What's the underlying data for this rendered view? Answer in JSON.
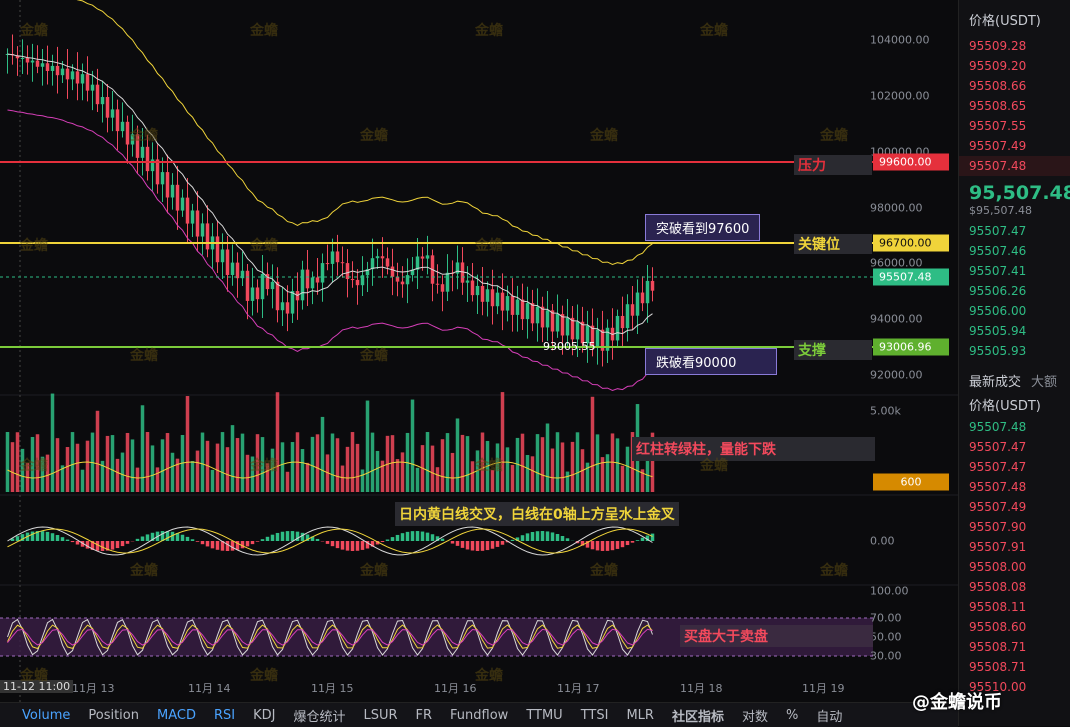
{
  "price_axis": {
    "labels": [
      "104000.00",
      "102000.00",
      "100000.00",
      "98000.00",
      "96000.00",
      "94000.00",
      "92000.00"
    ],
    "volume_labels": [
      "5.00k"
    ],
    "macd_labels": [
      "0.00"
    ],
    "rsi_labels": [
      "100.00",
      "70.00",
      "50.00",
      "30.00"
    ]
  },
  "tags": {
    "pressure_price": "99600.00",
    "key_price": "96700.00",
    "current_price": "95507.48",
    "support_price": "93006.96",
    "volume_value": "600"
  },
  "annotations": {
    "pressure": "压力",
    "key_level": "关键位",
    "support": "支撑",
    "break_up": "突破看到97600",
    "break_down": "跌破看90000",
    "low_price": "93005.55",
    "volume_note": "红柱转绿柱，量能下跌",
    "macd_note": "日内黄白线交叉，白线在0轴上方呈水上金叉",
    "rsi_note": "买盘大于卖盘"
  },
  "dates": [
    "11-12 11:00",
    "11月 13",
    "11月 14",
    "11月 15",
    "11月 16",
    "11月 17",
    "11月 18",
    "11月 19"
  ],
  "watermark": "金蟾",
  "bottom_tabs": [
    "Volume",
    "Position",
    "MACD",
    "RSI",
    "KDJ",
    "爆仓统计",
    "LSUR",
    "FR",
    "Fundflow",
    "TTMU",
    "TTSI",
    "MLR"
  ],
  "bottom_right": [
    "社区指标",
    "对数",
    "%",
    "自动"
  ],
  "footer_brand": "@金蟾说币",
  "right_panel": {
    "header": "价格(USDT)",
    "asks": [
      "95509.28",
      "95509.20",
      "95508.66",
      "95508.65",
      "95507.55",
      "95507.49",
      "95507.48"
    ],
    "last_price": "95,507.48",
    "last_price_usd": "$95,507.48",
    "bids": [
      "95507.47",
      "95507.46",
      "95507.41",
      "95506.26",
      "95506.00",
      "95505.94",
      "95505.93"
    ],
    "trades_tab": "最新成交",
    "trades_tab2": "大额",
    "trades_header": "价格(USDT)",
    "trades": [
      {
        "p": "95507.48",
        "c": "green"
      },
      {
        "p": "95507.47",
        "c": "red"
      },
      {
        "p": "95507.47",
        "c": "red"
      },
      {
        "p": "95507.48",
        "c": "red"
      },
      {
        "p": "95507.49",
        "c": "red"
      },
      {
        "p": "95507.90",
        "c": "red"
      },
      {
        "p": "95507.91",
        "c": "red"
      },
      {
        "p": "95508.00",
        "c": "red"
      },
      {
        "p": "95508.08",
        "c": "red"
      },
      {
        "p": "95508.11",
        "c": "red"
      },
      {
        "p": "95508.60",
        "c": "red"
      },
      {
        "p": "95508.71",
        "c": "red"
      },
      {
        "p": "95508.71",
        "c": "red"
      },
      {
        "p": "95510.00",
        "c": "red"
      }
    ]
  },
  "colors": {
    "up": "#2ebd85",
    "down": "#f2495c",
    "pressure": "#e5303c",
    "key": "#f0d43a",
    "support": "#7ccc3a",
    "ma_white": "#d9d9d9",
    "boll_yellow": "#f0d43a",
    "boll_pink": "#d63fb8"
  }
}
